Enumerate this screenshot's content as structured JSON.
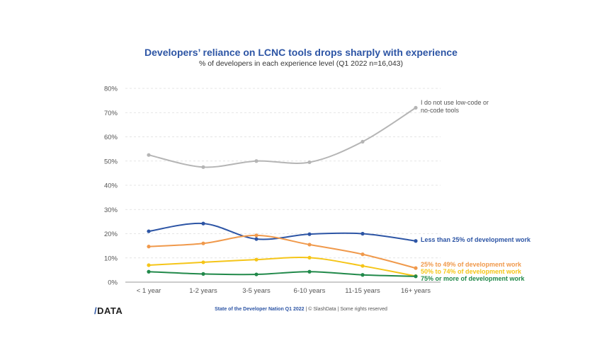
{
  "chart_data": {
    "type": "line",
    "title": "Developers’ reliance on LCNC tools drops sharply with experience",
    "subtitle": "% of developers in each experience level (Q1 2022 n=16,043)",
    "categories": [
      "< 1 year",
      "1-2 years",
      "3-5 years",
      "6-10 years",
      "11-15 years",
      "16+ years"
    ],
    "ylim": [
      0,
      80
    ],
    "yticks": [
      "0%",
      "10%",
      "20%",
      "30%",
      "40%",
      "50%",
      "60%",
      "70%",
      "80%"
    ],
    "grid": true,
    "series": [
      {
        "name": "I do not use low-code or no-code tools",
        "label_lines": [
          "I do not use low-code or",
          "no-code tools"
        ],
        "color": "#b5b5b5",
        "values": [
          52.5,
          47.5,
          50,
          49.5,
          58,
          72
        ]
      },
      {
        "name": "Less than 25% of development work",
        "label_lines": [
          "Less than 25% of development work"
        ],
        "color": "#2d55a5",
        "values": [
          21,
          24.2,
          17.8,
          19.8,
          20,
          17
        ]
      },
      {
        "name": "25% to 49% of development work",
        "label_lines": [
          "25% to 49% of development work"
        ],
        "color": "#f0994b",
        "values": [
          14.7,
          16,
          19.3,
          15.5,
          11.5,
          5.8
        ]
      },
      {
        "name": "50% to 74% of development work",
        "label_lines": [
          "50% to 74% of development work"
        ],
        "color": "#f5c518",
        "values": [
          7,
          8.2,
          9.3,
          10.1,
          6.7,
          2.5
        ]
      },
      {
        "name": "75% or more of development work",
        "label_lines": [
          "75% or more of development work"
        ],
        "color": "#21894a",
        "values": [
          4.3,
          3.4,
          3.2,
          4.3,
          3,
          2.4
        ]
      }
    ]
  },
  "footer": {
    "logo_slash": "/",
    "logo_text": "DATA",
    "title": "State of the Developer Nation Q1 2022",
    "rest": " | © SlashData | Some rights reserved"
  }
}
